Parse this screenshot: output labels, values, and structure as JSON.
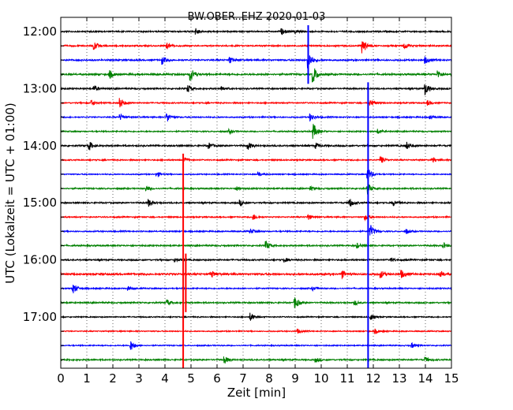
{
  "chart_data": {
    "type": "line",
    "title": "BW.OBER..EHZ 2020-01-03",
    "xlabel": "Zeit  [min]",
    "ylabel": "UTC (Lokalzeit = UTC + 01:00)",
    "xlim": [
      0,
      15
    ],
    "x_ticks": [
      "0",
      "1",
      "2",
      "3",
      "4",
      "5",
      "6",
      "7",
      "8",
      "9",
      "10",
      "11",
      "12",
      "13",
      "14",
      "15"
    ],
    "y_tick_labels": [
      "12:00",
      "13:00",
      "14:00",
      "15:00",
      "16:00",
      "17:00"
    ],
    "trace_interval_minutes": 15,
    "grid": "vertical dotted",
    "series": [
      {
        "row_time": "12:00",
        "color": "#000000",
        "amplitude": 0.18,
        "events": [
          {
            "x": 5.2,
            "amp": 0.7
          },
          {
            "x": 8.5,
            "amp": 0.6
          },
          {
            "x": 9.0,
            "amp": 0.4
          }
        ]
      },
      {
        "row_time": "12:15",
        "color": "#ff0000",
        "amplitude": 0.18,
        "events": [
          {
            "x": 1.3,
            "amp": 0.9
          },
          {
            "x": 4.1,
            "amp": 0.6
          },
          {
            "x": 11.6,
            "amp": 1.8
          },
          {
            "x": 13.2,
            "amp": 0.7
          }
        ]
      },
      {
        "row_time": "12:30",
        "color": "#0000ff",
        "amplitude": 0.2,
        "events": [
          {
            "x": 3.9,
            "amp": 0.9
          },
          {
            "x": 6.5,
            "amp": 0.7
          },
          {
            "x": 9.5,
            "amp": 2.2
          },
          {
            "x": 14.0,
            "amp": 0.8
          }
        ]
      },
      {
        "row_time": "12:45",
        "color": "#008000",
        "amplitude": 0.22,
        "events": [
          {
            "x": 1.9,
            "amp": 0.8
          },
          {
            "x": 5.0,
            "amp": 1.6
          },
          {
            "x": 9.7,
            "amp": 2.0
          },
          {
            "x": 14.5,
            "amp": 0.8
          }
        ]
      },
      {
        "row_time": "13:00",
        "color": "#000000",
        "amplitude": 0.18,
        "events": [
          {
            "x": 1.3,
            "amp": 0.6
          },
          {
            "x": 4.9,
            "amp": 0.8
          },
          {
            "x": 6.2,
            "amp": 0.5
          },
          {
            "x": 14.0,
            "amp": 1.5
          }
        ]
      },
      {
        "row_time": "13:15",
        "color": "#ff0000",
        "amplitude": 0.16,
        "events": [
          {
            "x": 1.2,
            "amp": 0.6
          },
          {
            "x": 2.3,
            "amp": 1.1
          },
          {
            "x": 11.9,
            "amp": 0.8
          },
          {
            "x": 14.1,
            "amp": 0.6
          }
        ]
      },
      {
        "row_time": "13:30",
        "color": "#0000ff",
        "amplitude": 0.16,
        "events": [
          {
            "x": 2.3,
            "amp": 0.6
          },
          {
            "x": 4.1,
            "amp": 1.0
          },
          {
            "x": 9.6,
            "amp": 0.9
          },
          {
            "x": 14.2,
            "amp": 0.5
          }
        ]
      },
      {
        "row_time": "13:45",
        "color": "#008000",
        "amplitude": 0.16,
        "events": [
          {
            "x": 6.5,
            "amp": 0.4
          },
          {
            "x": 9.7,
            "amp": 1.8
          },
          {
            "x": 12.2,
            "amp": 0.5
          }
        ]
      },
      {
        "row_time": "14:00",
        "color": "#000000",
        "amplitude": 0.2,
        "events": [
          {
            "x": 1.1,
            "amp": 1.0
          },
          {
            "x": 5.7,
            "amp": 0.6
          },
          {
            "x": 7.2,
            "amp": 0.8
          },
          {
            "x": 9.8,
            "amp": 0.6
          },
          {
            "x": 13.3,
            "amp": 0.8
          }
        ]
      },
      {
        "row_time": "14:15",
        "color": "#ff0000",
        "amplitude": 0.16,
        "events": [
          {
            "x": 4.8,
            "amp": 0.4
          },
          {
            "x": 12.3,
            "amp": 0.8
          },
          {
            "x": 14.3,
            "amp": 0.5
          }
        ]
      },
      {
        "row_time": "14:30",
        "color": "#0000ff",
        "amplitude": 0.14,
        "events": [
          {
            "x": 3.7,
            "amp": 0.6
          },
          {
            "x": 7.6,
            "amp": 0.5
          },
          {
            "x": 11.8,
            "amp": 1.5
          }
        ]
      },
      {
        "row_time": "14:45",
        "color": "#008000",
        "amplitude": 0.18,
        "events": [
          {
            "x": 3.3,
            "amp": 0.5
          },
          {
            "x": 6.8,
            "amp": 0.4
          },
          {
            "x": 9.6,
            "amp": 0.4
          },
          {
            "x": 11.8,
            "amp": 1.2
          }
        ]
      },
      {
        "row_time": "15:00",
        "color": "#000000",
        "amplitude": 0.18,
        "events": [
          {
            "x": 3.4,
            "amp": 0.8
          },
          {
            "x": 6.9,
            "amp": 0.6
          },
          {
            "x": 11.1,
            "amp": 1.0
          },
          {
            "x": 12.8,
            "amp": 0.6
          }
        ]
      },
      {
        "row_time": "15:15",
        "color": "#ff0000",
        "amplitude": 0.16,
        "events": [
          {
            "x": 7.4,
            "amp": 0.7
          },
          {
            "x": 9.5,
            "amp": 0.6
          },
          {
            "x": 11.7,
            "amp": 0.6
          }
        ]
      },
      {
        "row_time": "15:30",
        "color": "#0000ff",
        "amplitude": 0.16,
        "events": [
          {
            "x": 7.3,
            "amp": 0.5
          },
          {
            "x": 11.9,
            "amp": 1.4
          },
          {
            "x": 13.3,
            "amp": 0.5
          }
        ]
      },
      {
        "row_time": "15:45",
        "color": "#008000",
        "amplitude": 0.18,
        "events": [
          {
            "x": 7.9,
            "amp": 1.0
          },
          {
            "x": 11.4,
            "amp": 0.5
          },
          {
            "x": 14.7,
            "amp": 0.6
          }
        ]
      },
      {
        "row_time": "16:00",
        "color": "#000000",
        "amplitude": 0.18,
        "events": [
          {
            "x": 4.4,
            "amp": 0.4
          },
          {
            "x": 8.6,
            "amp": 0.5
          },
          {
            "x": 12.7,
            "amp": 0.4
          }
        ]
      },
      {
        "row_time": "16:15",
        "color": "#ff0000",
        "amplitude": 0.24,
        "events": [
          {
            "x": 5.8,
            "amp": 0.7
          },
          {
            "x": 10.8,
            "amp": 0.8
          },
          {
            "x": 12.3,
            "amp": 0.8
          },
          {
            "x": 13.1,
            "amp": 0.8
          },
          {
            "x": 14.6,
            "amp": 0.6
          }
        ]
      },
      {
        "row_time": "16:30",
        "color": "#0000ff",
        "amplitude": 0.16,
        "events": [
          {
            "x": 0.5,
            "amp": 1.1
          },
          {
            "x": 2.6,
            "amp": 0.4
          },
          {
            "x": 9.7,
            "amp": 0.4
          }
        ]
      },
      {
        "row_time": "16:45",
        "color": "#008000",
        "amplitude": 0.18,
        "events": [
          {
            "x": 4.1,
            "amp": 0.6
          },
          {
            "x": 9.0,
            "amp": 1.3
          },
          {
            "x": 11.3,
            "amp": 0.5
          }
        ]
      },
      {
        "row_time": "17:00",
        "color": "#000000",
        "amplitude": 0.14,
        "events": [
          {
            "x": 7.3,
            "amp": 0.9
          },
          {
            "x": 11.9,
            "amp": 0.7
          }
        ]
      },
      {
        "row_time": "17:15",
        "color": "#ff0000",
        "amplitude": 0.14,
        "events": [
          {
            "x": 9.1,
            "amp": 0.5
          },
          {
            "x": 12.1,
            "amp": 0.5
          }
        ]
      },
      {
        "row_time": "17:30",
        "color": "#0000ff",
        "amplitude": 0.14,
        "events": [
          {
            "x": 2.7,
            "amp": 1.2
          },
          {
            "x": 13.5,
            "amp": 0.5
          }
        ]
      },
      {
        "row_time": "17:45",
        "color": "#008000",
        "amplitude": 0.18,
        "events": [
          {
            "x": 6.3,
            "amp": 0.8
          },
          {
            "x": 9.8,
            "amp": 0.5
          },
          {
            "x": 14.0,
            "amp": 0.6
          }
        ]
      }
    ],
    "vertical_spikes": [
      {
        "x": 4.7,
        "from_row": "14:15",
        "to_row": "17:45",
        "color": "#ff0000"
      },
      {
        "x": 11.8,
        "from_row": "13:00",
        "to_row": "17:45",
        "color": "#0000ff"
      },
      {
        "x": 9.5,
        "from_row": "12:00",
        "to_row": "12:45",
        "color": "#0000ff"
      },
      {
        "x": 4.8,
        "from_row": "16:00",
        "to_row": "16:45",
        "color": "#ff0000"
      }
    ]
  }
}
